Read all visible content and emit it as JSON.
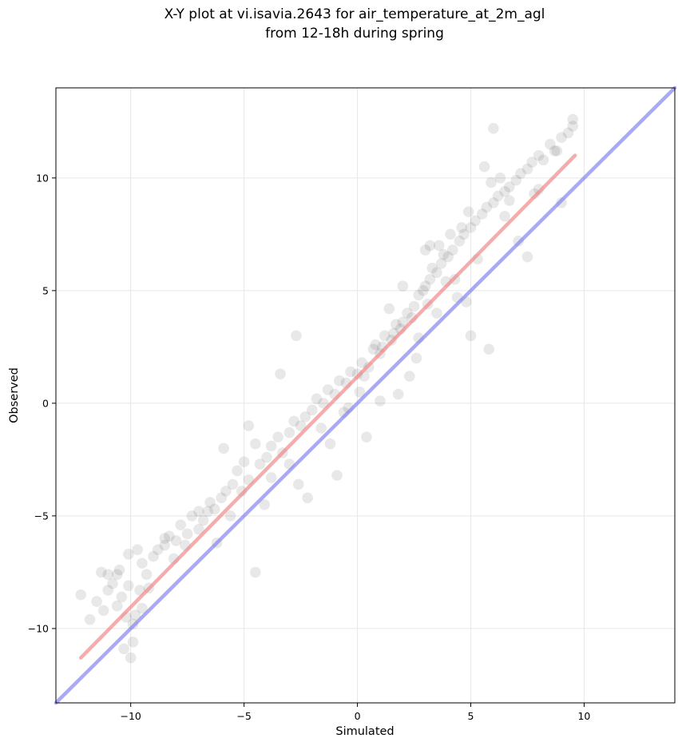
{
  "chart_data": {
    "type": "scatter",
    "title": [
      "X-Y plot at vi.isavia.2643 for air_temperature_at_2m_agl",
      "from 12-18h during spring"
    ],
    "xlabel": "Simulated",
    "ylabel": "Observed",
    "xlim": [
      -13.3,
      14.0
    ],
    "ylim": [
      -13.3,
      14.0
    ],
    "xticks": [
      -10,
      -5,
      0,
      5,
      10
    ],
    "xtick_labels": [
      "−10",
      "−5",
      "0",
      "5",
      "10"
    ],
    "yticks": [
      -10,
      -5,
      0,
      5,
      10
    ],
    "ytick_labels": [
      "−10",
      "−5",
      "0",
      "5",
      "10"
    ],
    "grid": true,
    "point_color": "#000000",
    "point_alpha": 0.09,
    "series": [
      {
        "kind": "scatter",
        "color": "#000000",
        "x": [
          -12.2,
          -11.8,
          -11.5,
          -11.3,
          -11.2,
          -11.0,
          -10.8,
          -10.6,
          -10.5,
          -10.4,
          -10.3,
          -10.2,
          -10.1,
          -10.0,
          -9.9,
          -9.8,
          -9.7,
          -9.6,
          -9.5,
          -9.3,
          -9.0,
          -8.8,
          -8.5,
          -8.3,
          -8.0,
          -7.8,
          -7.5,
          -7.3,
          -7.0,
          -6.8,
          -6.5,
          -6.3,
          -6.0,
          -5.8,
          -5.5,
          -5.3,
          -5.0,
          -4.8,
          -4.5,
          -4.3,
          -4.0,
          -3.8,
          -3.5,
          -3.3,
          -3.0,
          -2.8,
          -2.5,
          -2.3,
          -2.0,
          -1.8,
          -1.5,
          -1.3,
          -1.0,
          -0.8,
          -0.5,
          -0.3,
          0.0,
          0.2,
          0.5,
          0.7,
          1.0,
          1.2,
          1.5,
          1.7,
          2.0,
          2.2,
          2.5,
          2.7,
          3.0,
          3.2,
          3.5,
          3.7,
          4.0,
          4.2,
          4.5,
          4.7,
          5.0,
          5.2,
          5.5,
          5.7,
          6.0,
          6.2,
          6.5,
          6.7,
          7.0,
          7.2,
          7.5,
          7.7,
          8.0,
          8.2,
          8.5,
          8.8,
          9.0,
          9.3,
          9.5,
          -10.1,
          -9.9,
          -4.5,
          -2.7,
          -5.9,
          -0.9,
          1.8,
          3.2,
          6.0,
          9.5,
          7.5,
          5.8,
          4.8,
          -6.2,
          -3.4,
          0.4,
          2.6,
          4.1,
          5.6,
          6.7,
          3.5,
          2.0,
          1.0,
          -1.2,
          -3.8,
          -7.0,
          -8.5,
          -11.0,
          3.0,
          4.3,
          5.0,
          6.5,
          8.0,
          2.3,
          0.8,
          -0.4,
          -2.2,
          -4.8,
          -6.6,
          1.4,
          2.9,
          3.8,
          4.6,
          5.9,
          7.1,
          9.0,
          -9.5,
          -10.6,
          -8.1,
          -5.1,
          -3.0,
          -1.6,
          0.1,
          1.6,
          3.3,
          4.9,
          6.3,
          7.8,
          8.7,
          3.6,
          2.4,
          4.4,
          3.1,
          2.7,
          3.9,
          5.3,
          1.9,
          1.1,
          0.3,
          -0.6,
          -2.6,
          -4.1,
          -5.6,
          -7.6,
          -9.2
        ],
        "y": [
          -8.5,
          -9.6,
          -8.8,
          -7.5,
          -9.2,
          -7.6,
          -8.0,
          -9.0,
          -7.4,
          -8.6,
          -10.9,
          -9.5,
          -8.1,
          -11.3,
          -10.6,
          -9.4,
          -6.5,
          -8.3,
          -7.1,
          -7.6,
          -6.8,
          -6.5,
          -6.3,
          -5.9,
          -6.1,
          -5.4,
          -5.8,
          -5.0,
          -4.8,
          -5.2,
          -4.4,
          -4.7,
          -4.2,
          -3.9,
          -3.6,
          -3.0,
          -2.6,
          -3.4,
          -1.8,
          -2.7,
          -2.4,
          -1.9,
          -1.5,
          -2.2,
          -1.3,
          -0.8,
          -1.0,
          -0.6,
          -0.3,
          0.2,
          0.0,
          0.6,
          0.4,
          1.0,
          0.9,
          1.4,
          1.3,
          1.8,
          1.6,
          2.4,
          2.2,
          3.0,
          2.8,
          3.5,
          3.6,
          4.0,
          4.3,
          4.8,
          5.2,
          5.5,
          5.8,
          6.2,
          6.5,
          6.8,
          7.2,
          7.5,
          7.8,
          8.1,
          8.4,
          8.7,
          8.9,
          9.2,
          9.4,
          9.6,
          9.9,
          10.2,
          10.4,
          10.7,
          11.0,
          10.8,
          11.5,
          11.2,
          11.8,
          12.0,
          12.3,
          -6.7,
          -9.8,
          -7.5,
          3.0,
          -2.0,
          -3.2,
          0.4,
          7.0,
          12.2,
          12.6,
          6.5,
          2.4,
          4.5,
          -6.2,
          1.3,
          -1.5,
          2.0,
          7.5,
          10.5,
          9.0,
          4.0,
          5.2,
          0.1,
          -1.8,
          -3.3,
          -5.6,
          -6.0,
          -8.3,
          6.8,
          5.5,
          3.0,
          8.3,
          9.5,
          1.2,
          2.6,
          -0.2,
          -4.2,
          -1.0,
          -4.8,
          4.2,
          5.0,
          6.6,
          7.8,
          9.8,
          7.2,
          8.9,
          -9.1,
          -7.6,
          -6.9,
          -3.9,
          -2.7,
          -1.1,
          0.5,
          3.1,
          6.0,
          8.5,
          10.0,
          9.3,
          11.2,
          7.0,
          3.8,
          4.7,
          4.4,
          2.9,
          5.4,
          6.4,
          3.3,
          2.5,
          1.2,
          -0.4,
          -3.6,
          -4.5,
          -5.0,
          -6.3,
          -8.2
        ]
      },
      {
        "kind": "fit-line",
        "color": "#f08080",
        "x": [
          -12.2,
          9.6
        ],
        "y": [
          -11.3,
          11.0
        ]
      },
      {
        "kind": "identity-line",
        "color": "#7b7bee",
        "x": [
          -13.3,
          14.0
        ],
        "y": [
          -13.3,
          14.0
        ]
      }
    ]
  }
}
